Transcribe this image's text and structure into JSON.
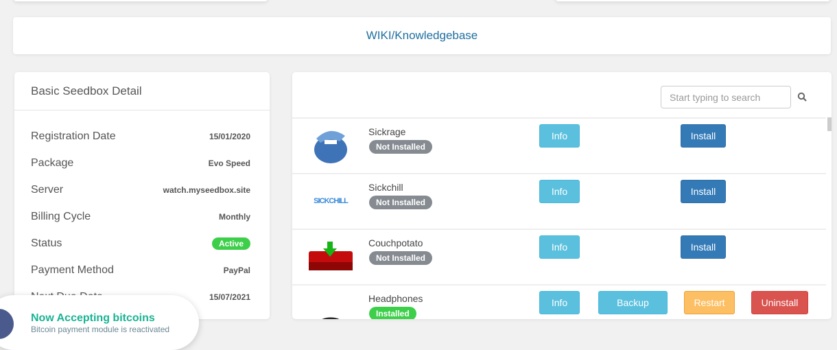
{
  "wiki": {
    "label": "WIKI/Knowledgebase"
  },
  "detail": {
    "title": "Basic Seedbox Detail",
    "rows": [
      {
        "label": "Registration Date",
        "value": "15/01/2020"
      },
      {
        "label": "Package",
        "value": "Evo Speed"
      },
      {
        "label": "Server",
        "value": "watch.myseedbox.site"
      },
      {
        "label": "Billing Cycle",
        "value": "Monthly"
      },
      {
        "label": "Status",
        "value": "Active"
      },
      {
        "label": "Payment Method",
        "value": "PayPal"
      },
      {
        "label": "Next Due Date",
        "value": "15/07/2021"
      }
    ]
  },
  "apps": {
    "search_placeholder": "Start typing to search",
    "items": [
      {
        "name": "Sickrage",
        "status": "Not Installed",
        "info": "Info",
        "install": "Install",
        "logo_text": "shark-mascot"
      },
      {
        "name": "Sickchill",
        "status": "Not Installed",
        "info": "Info",
        "install": "Install",
        "logo_text": "SICKCHILL"
      },
      {
        "name": "Couchpotato",
        "status": "Not Installed",
        "info": "Info",
        "install": "Install",
        "logo_text": "red-couch"
      },
      {
        "name": "Headphones",
        "status": "Installed",
        "info": "Info",
        "backup": "Backup",
        "restart": "Restart",
        "uninstall": "Uninstall",
        "logo_text": "headphones"
      }
    ]
  },
  "toast": {
    "title": "Now Accepting bitcoins",
    "message": "Bitcoin payment module is reactivated"
  },
  "colors": {
    "info": "#5bc0de",
    "install": "#337ab7",
    "restart": "#fcbf63",
    "uninstall": "#d9534f",
    "installed": "#3ecf4a",
    "not_installed": "#858b91",
    "toast_title": "#1ab394"
  }
}
